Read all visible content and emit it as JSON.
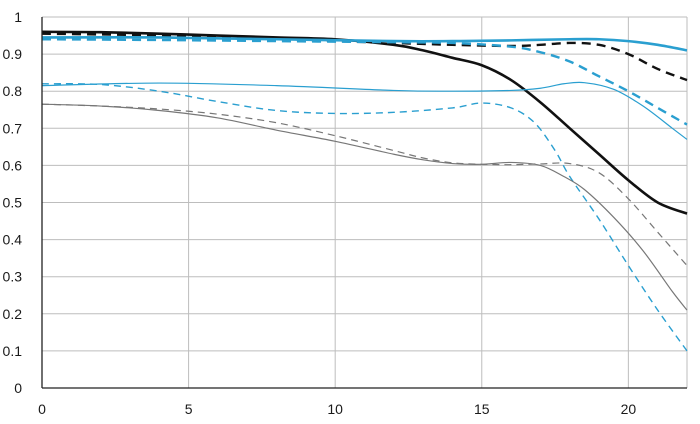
{
  "chart_data": {
    "type": "line",
    "title": "",
    "xlabel": "",
    "ylabel": "",
    "xlim": [
      0,
      22
    ],
    "ylim": [
      0,
      1
    ],
    "grid": true,
    "legend": "none",
    "x_ticks": [
      0,
      5,
      10,
      15,
      20
    ],
    "x_tick_labels": [
      "0",
      "5",
      "10",
      "15",
      "20"
    ],
    "y_ticks": [
      0,
      0.1,
      0.2,
      0.3,
      0.4,
      0.5,
      0.6,
      0.7,
      0.8,
      0.9,
      1
    ],
    "y_tick_labels": [
      "0",
      "0.1",
      "0.2",
      "0.3",
      "0.4",
      "0.5",
      "0.6",
      "0.7",
      "0.8",
      "0.9",
      "1"
    ],
    "colors": {
      "black": "#111111",
      "blue": "#2a9fd0",
      "gray": "#777777",
      "grid": "#bdbdbd",
      "axis": "#222222"
    },
    "series": [
      {
        "color": "black",
        "width": 2.6,
        "dash": false,
        "points": [
          [
            0,
            0.96
          ],
          [
            2,
            0.959
          ],
          [
            4,
            0.955
          ],
          [
            6,
            0.95
          ],
          [
            8,
            0.945
          ],
          [
            10,
            0.94
          ],
          [
            12,
            0.925
          ],
          [
            13,
            0.91
          ],
          [
            14,
            0.89
          ],
          [
            15,
            0.87
          ],
          [
            16,
            0.83
          ],
          [
            17,
            0.77
          ],
          [
            18,
            0.7
          ],
          [
            19,
            0.63
          ],
          [
            20,
            0.56
          ],
          [
            21,
            0.5
          ],
          [
            22,
            0.47
          ]
        ]
      },
      {
        "color": "black",
        "width": 2.4,
        "dash": true,
        "points": [
          [
            0,
            0.955
          ],
          [
            2,
            0.953
          ],
          [
            4,
            0.95
          ],
          [
            6,
            0.945
          ],
          [
            8,
            0.94
          ],
          [
            10,
            0.935
          ],
          [
            12,
            0.93
          ],
          [
            14,
            0.925
          ],
          [
            16,
            0.922
          ],
          [
            17,
            0.925
          ],
          [
            18,
            0.93
          ],
          [
            19,
            0.925
          ],
          [
            20,
            0.9
          ],
          [
            21,
            0.86
          ],
          [
            22,
            0.83
          ]
        ]
      },
      {
        "color": "blue",
        "width": 2.6,
        "dash": false,
        "points": [
          [
            0,
            0.945
          ],
          [
            4,
            0.945
          ],
          [
            8,
            0.94
          ],
          [
            12,
            0.935
          ],
          [
            14,
            0.935
          ],
          [
            16,
            0.937
          ],
          [
            18,
            0.94
          ],
          [
            19,
            0.94
          ],
          [
            20,
            0.935
          ],
          [
            21,
            0.925
          ],
          [
            22,
            0.91
          ]
        ]
      },
      {
        "color": "blue",
        "width": 2.4,
        "dash": true,
        "points": [
          [
            0,
            0.94
          ],
          [
            4,
            0.938
          ],
          [
            8,
            0.935
          ],
          [
            12,
            0.932
          ],
          [
            14,
            0.93
          ],
          [
            16,
            0.92
          ],
          [
            17,
            0.905
          ],
          [
            18,
            0.88
          ],
          [
            19,
            0.84
          ],
          [
            20,
            0.8
          ],
          [
            21,
            0.755
          ],
          [
            22,
            0.71
          ]
        ]
      },
      {
        "color": "blue",
        "width": 1.2,
        "dash": false,
        "points": [
          [
            0,
            0.815
          ],
          [
            4,
            0.822
          ],
          [
            8,
            0.815
          ],
          [
            12,
            0.802
          ],
          [
            14,
            0.8
          ],
          [
            16,
            0.802
          ],
          [
            17,
            0.808
          ],
          [
            17.8,
            0.82
          ],
          [
            18.5,
            0.823
          ],
          [
            19.5,
            0.805
          ],
          [
            20.5,
            0.76
          ],
          [
            21.5,
            0.7
          ],
          [
            22,
            0.67
          ]
        ]
      },
      {
        "color": "blue",
        "width": 1.4,
        "dash": true,
        "points": [
          [
            0,
            0.82
          ],
          [
            2,
            0.818
          ],
          [
            4,
            0.8
          ],
          [
            6,
            0.772
          ],
          [
            8,
            0.748
          ],
          [
            10,
            0.74
          ],
          [
            12,
            0.743
          ],
          [
            14,
            0.755
          ],
          [
            15,
            0.768
          ],
          [
            16,
            0.755
          ],
          [
            16.8,
            0.715
          ],
          [
            17.5,
            0.64
          ],
          [
            18,
            0.57
          ],
          [
            19,
            0.455
          ],
          [
            20,
            0.33
          ],
          [
            21,
            0.21
          ],
          [
            22,
            0.1
          ]
        ]
      },
      {
        "color": "gray",
        "width": 1.2,
        "dash": false,
        "points": [
          [
            0,
            0.765
          ],
          [
            2,
            0.76
          ],
          [
            4,
            0.748
          ],
          [
            6,
            0.728
          ],
          [
            8,
            0.695
          ],
          [
            10,
            0.665
          ],
          [
            12,
            0.63
          ],
          [
            13,
            0.615
          ],
          [
            14,
            0.605
          ],
          [
            15,
            0.603
          ],
          [
            16,
            0.608
          ],
          [
            17,
            0.6
          ],
          [
            17.8,
            0.57
          ],
          [
            18.5,
            0.535
          ],
          [
            19.5,
            0.46
          ],
          [
            20.5,
            0.37
          ],
          [
            21.5,
            0.26
          ],
          [
            22,
            0.21
          ]
        ]
      },
      {
        "color": "gray",
        "width": 1.2,
        "dash": true,
        "points": [
          [
            0,
            0.765
          ],
          [
            2,
            0.76
          ],
          [
            4,
            0.752
          ],
          [
            6,
            0.738
          ],
          [
            8,
            0.715
          ],
          [
            10,
            0.68
          ],
          [
            12,
            0.64
          ],
          [
            13,
            0.62
          ],
          [
            14,
            0.607
          ],
          [
            15,
            0.603
          ],
          [
            16,
            0.602
          ],
          [
            17,
            0.604
          ],
          [
            18,
            0.605
          ],
          [
            19,
            0.58
          ],
          [
            20,
            0.51
          ],
          [
            21,
            0.42
          ],
          [
            22,
            0.33
          ]
        ]
      }
    ]
  }
}
